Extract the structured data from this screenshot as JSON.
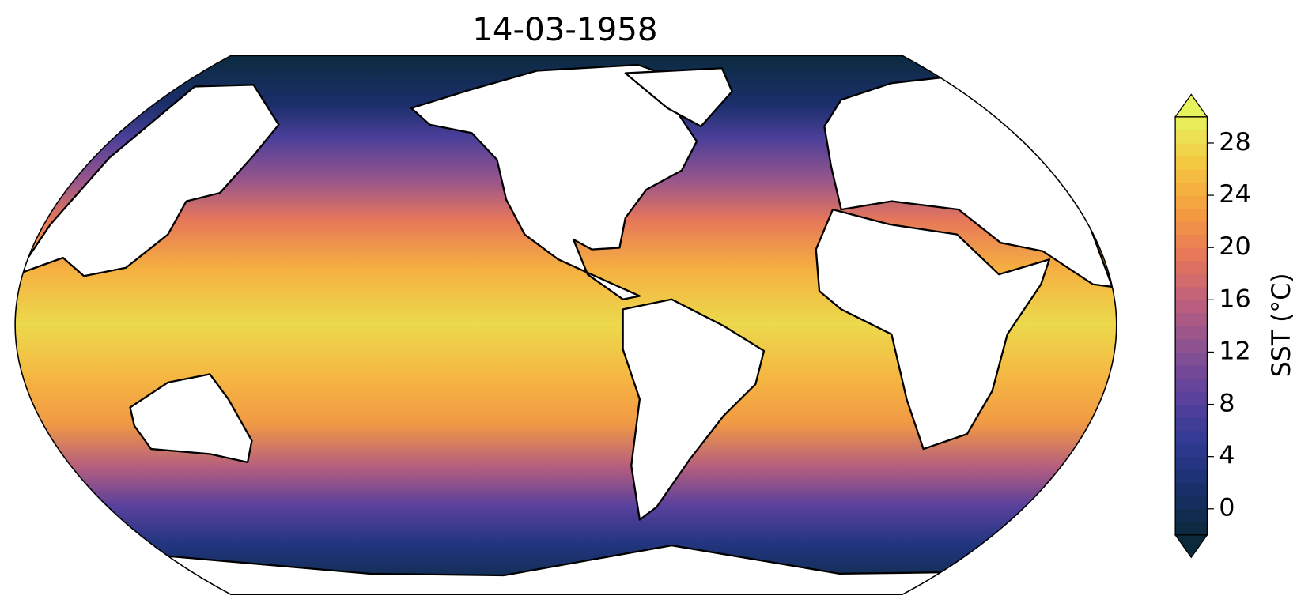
{
  "chart_data": {
    "type": "map",
    "title": "14-03-1958",
    "colorbar": {
      "label": "SST (°C)",
      "clim": [
        -2,
        30
      ],
      "ticks": [
        0,
        4,
        8,
        12,
        16,
        20,
        24,
        28
      ],
      "extend": "both",
      "colormap": [
        "#0a2a3b",
        "#182f6b",
        "#2f3a93",
        "#5b419c",
        "#8a5192",
        "#bd5f7d",
        "#e6775a",
        "#f59e3e",
        "#f4c842",
        "#e7f35d"
      ]
    }
  }
}
